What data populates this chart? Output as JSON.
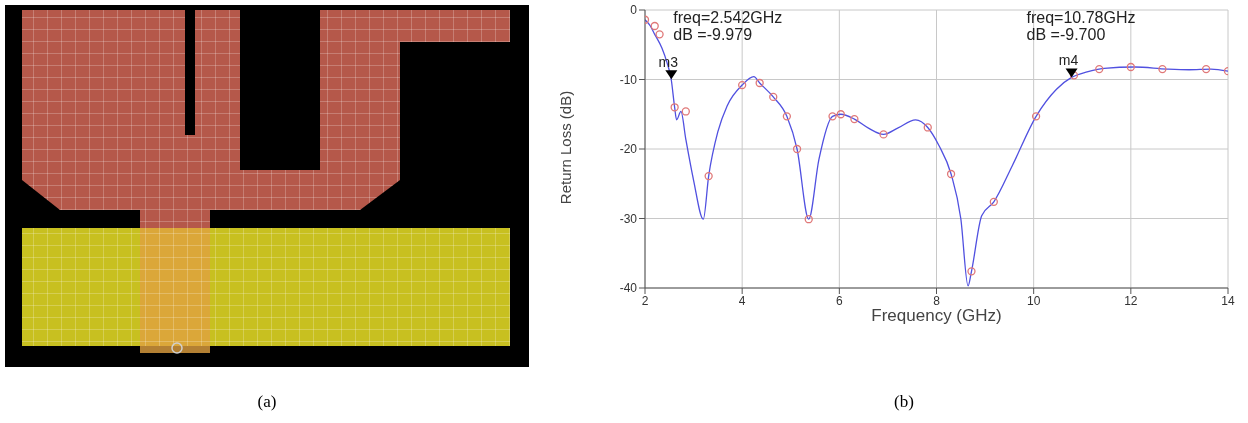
{
  "chart_data": {
    "type": "line",
    "xlabel": "Frequency (GHz)",
    "ylabel": "Return Loss (dB)",
    "xlim": [
      2,
      14
    ],
    "xticks": [
      2,
      4,
      6,
      8,
      10,
      12,
      14
    ],
    "ylim": [
      -40,
      0
    ],
    "yticks": [
      -40,
      -30,
      -20,
      -10,
      0
    ],
    "grid": true,
    "series": [
      {
        "color": "#5050e0",
        "marker": "none",
        "x": [
          2,
          2.11,
          2.2,
          2.35,
          2.45,
          2.54,
          2.61,
          2.65,
          2.74,
          2.84,
          3.0,
          3.2,
          3.31,
          3.5,
          3.69,
          4.0,
          4.24,
          4.36,
          4.64,
          4.92,
          5.13,
          5.37,
          5.58,
          5.86,
          6.03,
          6.31,
          6.6,
          6.91,
          7.2,
          7.57,
          7.82,
          8.05,
          8.3,
          8.5,
          8.65,
          8.72,
          8.93,
          9.18,
          9.56,
          10.05,
          10.47,
          10.78,
          11.1,
          11.45,
          12.08,
          12.74,
          13.2,
          13.65,
          14
        ],
        "values": [
          -1.4,
          -2.3,
          -3.5,
          -5.5,
          -7.5,
          -10.0,
          -14.0,
          -15.8,
          -14.6,
          -18.6,
          -24.5,
          -30.1,
          -23.9,
          -17.5,
          -13.8,
          -10.8,
          -9.6,
          -10.5,
          -12.5,
          -15.3,
          -20.0,
          -30.1,
          -21.5,
          -15.3,
          -15.0,
          -15.7,
          -17.0,
          -17.9,
          -17.0,
          -15.8,
          -16.9,
          -19.5,
          -23.6,
          -30.0,
          -39.7,
          -37.6,
          -29.6,
          -27.6,
          -22.4,
          -15.3,
          -11.4,
          -9.7,
          -8.9,
          -8.4,
          -8.2,
          -8.5,
          -8.6,
          -8.5,
          -8.8
        ]
      },
      {
        "type": "scatter",
        "color": "#e07878",
        "marker": "circle",
        "x": [
          2,
          2.2,
          2.3,
          2.61,
          2.84,
          3.31,
          4.0,
          4.36,
          4.64,
          4.92,
          5.13,
          5.37,
          5.86,
          6.03,
          6.31,
          6.91,
          7.82,
          8.3,
          8.72,
          9.18,
          10.05,
          10.83,
          11.35,
          12.0,
          12.65,
          13.55,
          14
        ],
        "values": [
          -1.4,
          -2.3,
          -3.5,
          -14.0,
          -14.6,
          -23.9,
          -10.8,
          -10.5,
          -12.5,
          -15.3,
          -20.0,
          -30.1,
          -15.3,
          -15.0,
          -15.7,
          -17.9,
          -16.9,
          -23.6,
          -37.6,
          -27.6,
          -15.3,
          -9.4,
          -8.5,
          -8.2,
          -8.5,
          -8.5,
          -8.8
        ]
      }
    ],
    "annotations": [
      "(a)",
      "(b)",
      "freq=2.542GHz",
      "dB =-9.979",
      "freq=10.78GHz",
      "dB =-9.700",
      {
        "text": "m3",
        "x": 2.542,
        "y": -9.979
      },
      {
        "text": "m4",
        "x": 10.78,
        "y": -9.7
      }
    ]
  }
}
